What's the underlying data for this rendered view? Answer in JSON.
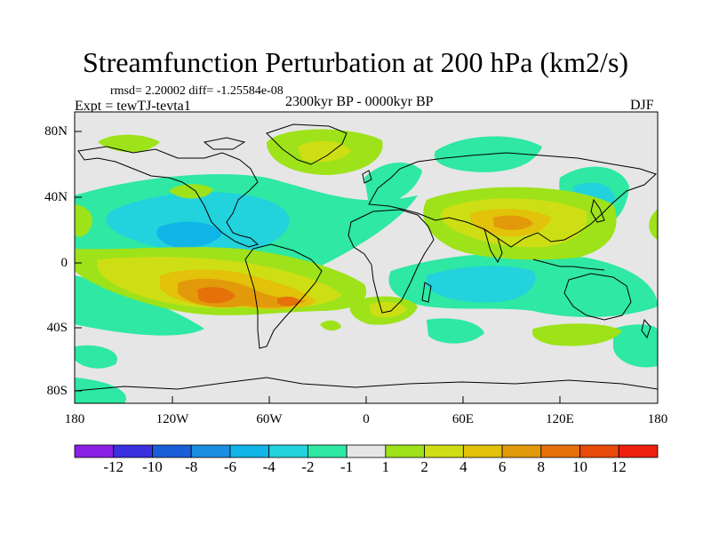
{
  "title": "Streamfunction Perturbation at 200 hPa (km2/s)",
  "stats_line": "rmsd= 2.20002 diff= -1.25584e-08",
  "experiment": "Expt = tewTJ-tevta1",
  "period": "2300kyr BP - 0000kyr BP",
  "season": "DJF",
  "lat_labels": [
    "80N",
    "40N",
    "0",
    "40S",
    "80S"
  ],
  "lon_labels": [
    "180",
    "120W",
    "60W",
    "0",
    "60E",
    "120E",
    "180"
  ],
  "colorbar": {
    "labels": [
      "-12",
      "-10",
      "-8",
      "-6",
      "-4",
      "-2",
      "-1",
      "1",
      "2",
      "4",
      "6",
      "8",
      "10",
      "12"
    ],
    "colors": [
      "#8a1fe6",
      "#3b2fe0",
      "#1a5ed8",
      "#1a8ee0",
      "#10b4e6",
      "#22d2dc",
      "#2ee8a4",
      "#e6e6e6",
      "#9ee21a",
      "#cede14",
      "#e2c20a",
      "#e29a0a",
      "#e6700a",
      "#e84a0a",
      "#ee2010"
    ]
  },
  "map_colors": {
    "background": "#e6e6e6",
    "land_outline": "#000000",
    "neg_light": "#2ee8a4",
    "neg_mid": "#22d2dc",
    "neg_strong": "#10b4e6",
    "pos_light": "#9ee21a",
    "pos_mid": "#cede14",
    "pos_strong": "#e2c20a",
    "pos_stronger": "#e29a0a",
    "pos_max": "#e6700a"
  }
}
